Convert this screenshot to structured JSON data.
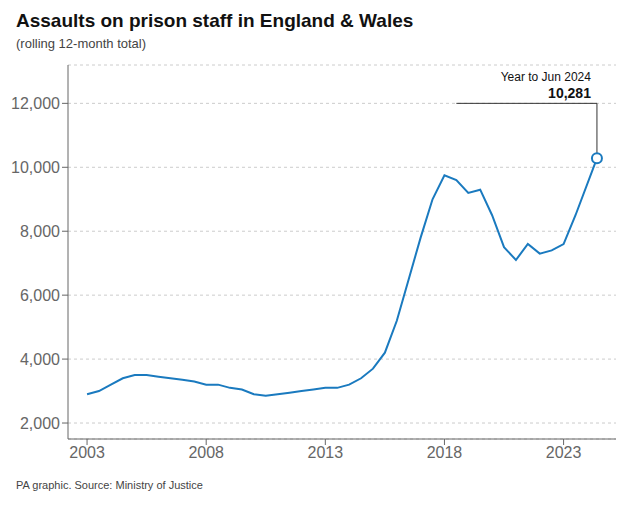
{
  "chart_data": {
    "type": "line",
    "title": "Assaults on prison staff in England & Wales",
    "subtitle": "(rolling 12-month total)",
    "source": "PA graphic. Source: Ministry of Justice",
    "x": [
      2003,
      2003.5,
      2004,
      2004.5,
      2005,
      2005.5,
      2006,
      2006.5,
      2007,
      2007.5,
      2008,
      2008.5,
      2009,
      2009.5,
      2010,
      2010.5,
      2011,
      2011.5,
      2012,
      2012.5,
      2013,
      2013.5,
      2014,
      2014.5,
      2015,
      2015.5,
      2016,
      2016.5,
      2017,
      2017.5,
      2018,
      2018.5,
      2019,
      2019.5,
      2020,
      2020.5,
      2021,
      2021.5,
      2022,
      2022.5,
      2023,
      2023.5,
      2024.4
    ],
    "values": [
      2900,
      3000,
      3200,
      3400,
      3500,
      3500,
      3450,
      3400,
      3350,
      3300,
      3200,
      3200,
      3100,
      3050,
      2900,
      2850,
      2900,
      2950,
      3000,
      3050,
      3100,
      3100,
      3200,
      3400,
      3700,
      4200,
      5200,
      6500,
      7800,
      9000,
      9750,
      9600,
      9200,
      9300,
      8500,
      7500,
      7100,
      7600,
      7300,
      7400,
      7600,
      8500,
      10281
    ],
    "color": "#1a7abf",
    "xlim": [
      2002.2,
      2025.2
    ],
    "xticks": [
      2003,
      2008,
      2013,
      2018,
      2023
    ],
    "ylim": [
      1500,
      13200
    ],
    "yticks": [
      {
        "value": 2000,
        "label": "2,000"
      },
      {
        "value": 4000,
        "label": "4,000"
      },
      {
        "value": 6000,
        "label": "6,000"
      },
      {
        "value": 8000,
        "label": "8,000"
      },
      {
        "value": 10000,
        "label": "10,000"
      },
      {
        "value": 12000,
        "label": "12,000"
      }
    ],
    "grid": true,
    "annotations": [
      {
        "label": "Year to Jun 2024",
        "value_label": "10,281",
        "x": 2024.4,
        "y": 10281,
        "line_y": 12000,
        "line_x_start": 2018.5
      }
    ]
  }
}
